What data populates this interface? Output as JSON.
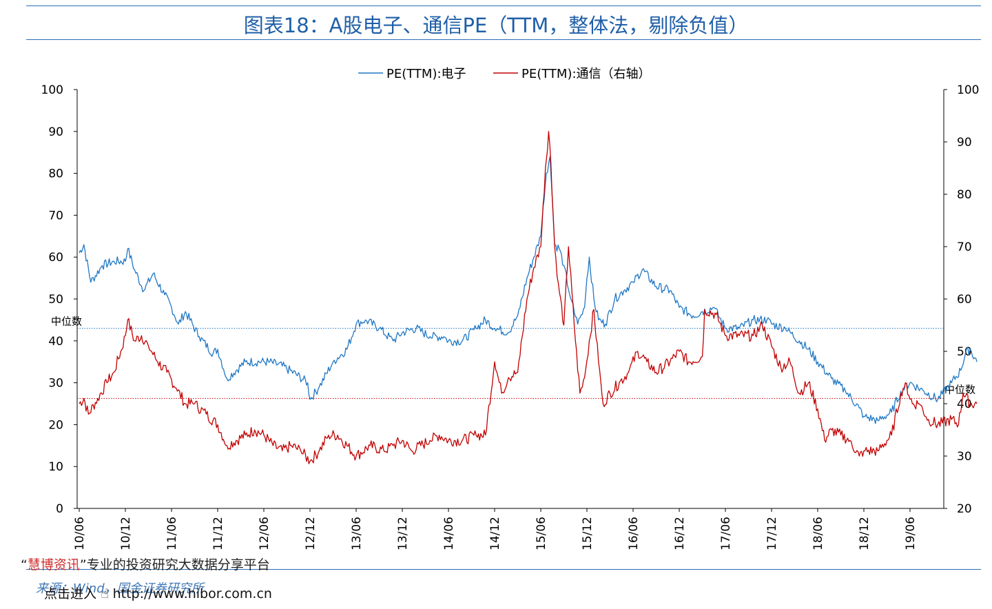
{
  "title": "图表18：A股电子、通信PE（TTM，整体法，剔除负值）",
  "chart_data": {
    "type": "line",
    "x_tick_labels": [
      "10/06",
      "10/12",
      "11/06",
      "11/12",
      "12/06",
      "12/12",
      "13/06",
      "13/12",
      "14/06",
      "14/12",
      "15/06",
      "15/12",
      "16/06",
      "16/12",
      "17/06",
      "17/12",
      "18/06",
      "18/12",
      "19/06"
    ],
    "left_axis": {
      "ylim": [
        0,
        100
      ],
      "ticks": [
        "0",
        "10",
        "20",
        "30",
        "40",
        "50",
        "60",
        "70",
        "80",
        "90",
        "100"
      ]
    },
    "right_axis": {
      "ylim": [
        20,
        100
      ],
      "ticks": [
        "20",
        "30",
        "40",
        "50",
        "60",
        "70",
        "80",
        "90",
        "100"
      ]
    },
    "legend": {
      "position": "top-center"
    },
    "series": [
      {
        "name": "PE(TTM):电子",
        "axis": "left",
        "color": "#1f77c4",
        "median_label": "中位数",
        "median_value": 43,
        "points": [
          [
            0,
            61
          ],
          [
            0.1,
            63
          ],
          [
            0.25,
            54
          ],
          [
            0.5,
            58
          ],
          [
            0.75,
            59
          ],
          [
            1,
            59
          ],
          [
            1.05,
            62
          ],
          [
            1.2,
            57
          ],
          [
            1.4,
            52
          ],
          [
            1.6,
            56
          ],
          [
            1.85,
            51
          ],
          [
            2,
            48
          ],
          [
            2.15,
            44
          ],
          [
            2.3,
            47
          ],
          [
            2.6,
            41
          ],
          [
            2.9,
            37
          ],
          [
            3,
            38
          ],
          [
            3.2,
            31
          ],
          [
            3.4,
            33
          ],
          [
            3.6,
            35
          ],
          [
            3.9,
            35
          ],
          [
            4.1,
            35
          ],
          [
            4.4,
            34
          ],
          [
            4.7,
            32
          ],
          [
            4.95,
            30
          ],
          [
            5,
            26
          ],
          [
            5.2,
            29
          ],
          [
            5.5,
            35
          ],
          [
            5.8,
            38
          ],
          [
            6,
            44
          ],
          [
            6.2,
            45
          ],
          [
            6.5,
            43
          ],
          [
            6.8,
            40
          ],
          [
            7,
            42
          ],
          [
            7.3,
            43
          ],
          [
            7.6,
            41
          ],
          [
            7.9,
            41
          ],
          [
            8,
            40
          ],
          [
            8.3,
            40
          ],
          [
            8.6,
            43
          ],
          [
            8.8,
            45
          ],
          [
            9,
            43
          ],
          [
            9.3,
            42
          ],
          [
            9.5,
            46
          ],
          [
            9.7,
            55
          ],
          [
            9.85,
            60
          ],
          [
            10,
            65
          ],
          [
            10.05,
            72
          ],
          [
            10.12,
            80
          ],
          [
            10.2,
            84
          ],
          [
            10.25,
            74
          ],
          [
            10.3,
            63
          ],
          [
            10.4,
            62
          ],
          [
            10.5,
            58
          ],
          [
            10.65,
            50
          ],
          [
            10.8,
            44
          ],
          [
            10.95,
            48
          ],
          [
            11,
            55
          ],
          [
            11.05,
            60
          ],
          [
            11.15,
            50
          ],
          [
            11.25,
            45
          ],
          [
            11.4,
            44
          ],
          [
            11.6,
            50
          ],
          [
            11.8,
            52
          ],
          [
            12,
            54
          ],
          [
            12.2,
            57
          ],
          [
            12.5,
            53
          ],
          [
            12.8,
            52
          ],
          [
            13,
            48
          ],
          [
            13.3,
            46
          ],
          [
            13.5,
            47
          ],
          [
            13.75,
            48
          ],
          [
            14,
            43
          ],
          [
            14.3,
            43
          ],
          [
            14.6,
            45
          ],
          [
            14.9,
            45
          ],
          [
            15,
            44
          ],
          [
            15.3,
            43
          ],
          [
            15.6,
            40
          ],
          [
            15.8,
            38
          ],
          [
            16,
            35
          ],
          [
            16.3,
            31
          ],
          [
            16.6,
            28
          ],
          [
            16.9,
            24
          ],
          [
            17,
            22
          ],
          [
            17.3,
            21
          ],
          [
            17.6,
            23
          ],
          [
            17.8,
            28
          ],
          [
            18,
            30
          ],
          [
            18.3,
            28
          ],
          [
            18.6,
            26
          ],
          [
            18.9,
            30
          ],
          [
            19.1,
            33
          ],
          [
            19.2,
            37
          ],
          [
            19.3,
            38
          ],
          [
            19.45,
            35
          ]
        ]
      },
      {
        "name": "PE(TTM):通信（右轴）",
        "axis": "right",
        "color": "#c00000",
        "median_label": "中位数",
        "median_value": 41,
        "points": [
          [
            0,
            40
          ],
          [
            0.1,
            41
          ],
          [
            0.2,
            38
          ],
          [
            0.4,
            41
          ],
          [
            0.6,
            44
          ],
          [
            0.75,
            46
          ],
          [
            0.9,
            50
          ],
          [
            1,
            53
          ],
          [
            1.05,
            56
          ],
          [
            1.2,
            52
          ],
          [
            1.35,
            53
          ],
          [
            1.5,
            51
          ],
          [
            1.7,
            48
          ],
          [
            1.9,
            46
          ],
          [
            2.1,
            43
          ],
          [
            2.3,
            40
          ],
          [
            2.5,
            40
          ],
          [
            2.75,
            38
          ],
          [
            3,
            36
          ],
          [
            3.2,
            32
          ],
          [
            3.4,
            33
          ],
          [
            3.6,
            34
          ],
          [
            3.8,
            35
          ],
          [
            4,
            34
          ],
          [
            4.2,
            32
          ],
          [
            4.4,
            31
          ],
          [
            4.6,
            32
          ],
          [
            4.8,
            31
          ],
          [
            5,
            29
          ],
          [
            5.2,
            31
          ],
          [
            5.4,
            34
          ],
          [
            5.6,
            34
          ],
          [
            5.8,
            32
          ],
          [
            6,
            30
          ],
          [
            6.3,
            32
          ],
          [
            6.6,
            31
          ],
          [
            6.8,
            32
          ],
          [
            7,
            33
          ],
          [
            7.2,
            31
          ],
          [
            7.4,
            32
          ],
          [
            7.6,
            33
          ],
          [
            7.8,
            34
          ],
          [
            8,
            33
          ],
          [
            8.3,
            33
          ],
          [
            8.6,
            34
          ],
          [
            8.8,
            34
          ],
          [
            9,
            48
          ],
          [
            9.15,
            42
          ],
          [
            9.3,
            45
          ],
          [
            9.5,
            46
          ],
          [
            9.7,
            60
          ],
          [
            9.85,
            66
          ],
          [
            10,
            70
          ],
          [
            10.1,
            85
          ],
          [
            10.17,
            92
          ],
          [
            10.22,
            86
          ],
          [
            10.3,
            70
          ],
          [
            10.38,
            63
          ],
          [
            10.5,
            55
          ],
          [
            10.6,
            70
          ],
          [
            10.75,
            52
          ],
          [
            10.85,
            42
          ],
          [
            10.95,
            45
          ],
          [
            11.05,
            52
          ],
          [
            11.15,
            58
          ],
          [
            11.25,
            48
          ],
          [
            11.35,
            40
          ],
          [
            11.5,
            42
          ],
          [
            11.7,
            44
          ],
          [
            11.9,
            46
          ],
          [
            12.1,
            50
          ],
          [
            12.3,
            48
          ],
          [
            12.5,
            46
          ],
          [
            12.8,
            48
          ],
          [
            13,
            50
          ],
          [
            13.2,
            48
          ],
          [
            13.5,
            49
          ],
          [
            13.55,
            58
          ],
          [
            13.8,
            57
          ],
          [
            14,
            53
          ],
          [
            14.3,
            53
          ],
          [
            14.6,
            53
          ],
          [
            14.8,
            55
          ],
          [
            15,
            51
          ],
          [
            15.2,
            47
          ],
          [
            15.4,
            48
          ],
          [
            15.6,
            42
          ],
          [
            15.8,
            44
          ],
          [
            16,
            39
          ],
          [
            16.15,
            33
          ],
          [
            16.3,
            35
          ],
          [
            16.5,
            34
          ],
          [
            16.7,
            33
          ],
          [
            16.9,
            30
          ],
          [
            17,
            31
          ],
          [
            17.3,
            31
          ],
          [
            17.6,
            34
          ],
          [
            17.8,
            42
          ],
          [
            17.9,
            44
          ],
          [
            18.05,
            40
          ],
          [
            18.2,
            40
          ],
          [
            18.4,
            37
          ],
          [
            18.6,
            36
          ],
          [
            18.9,
            37
          ],
          [
            19.05,
            36
          ],
          [
            19.15,
            42
          ],
          [
            19.3,
            40
          ],
          [
            19.45,
            40
          ]
        ]
      }
    ]
  },
  "footer": {
    "quote_open": "“",
    "brand": "慧博资讯",
    "quote_close": "”",
    "slogan": "专业的投资研究大数据分享平台",
    "source": "来源：Wind，国金证券研究所",
    "link_prefix": "点击进入",
    "link_url": "http://www.hibor.com.cn"
  }
}
